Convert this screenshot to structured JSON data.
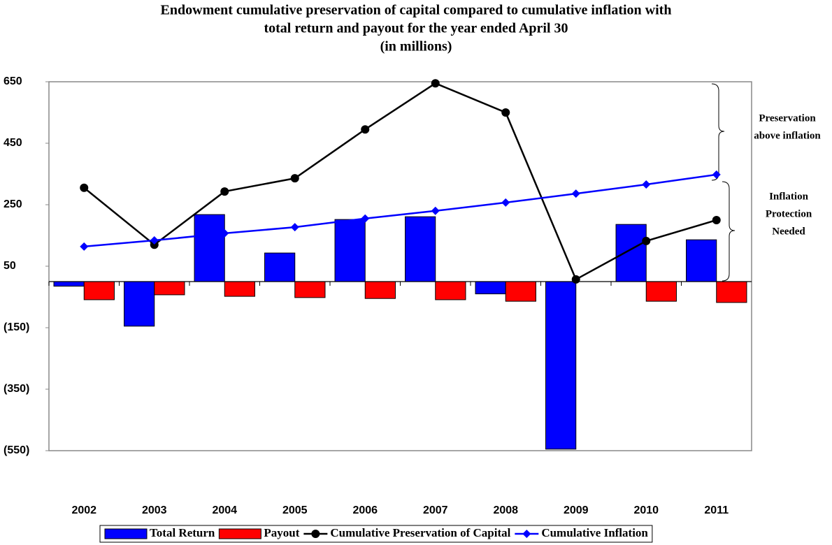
{
  "chart_data": {
    "type": "combo",
    "title": [
      "Endowment cumulative preservation of capital compared to cumulative inflation with",
      "total return and payout for the year ended April 30",
      "(in millions)"
    ],
    "categories": [
      "2002",
      "2003",
      "2004",
      "2005",
      "2006",
      "2007",
      "2008",
      "2009",
      "2010",
      "2011"
    ],
    "series": [
      {
        "name": "Total Return",
        "type": "bar",
        "color": "#0000ff",
        "values": [
          -15,
          -145,
          218,
          93,
          202,
          211,
          -40,
          -545,
          186,
          136
        ]
      },
      {
        "name": "Payout",
        "type": "bar",
        "color": "#ff0000",
        "values": [
          -59,
          -43,
          -48,
          -52,
          -55,
          -59,
          -64,
          null,
          -64,
          -68
        ]
      },
      {
        "name": "Cumulative Preservation of Capital",
        "type": "line",
        "marker": "circle",
        "color": "#000000",
        "values": [
          305,
          120,
          293,
          336,
          495,
          645,
          550,
          7,
          132,
          200
        ]
      },
      {
        "name": "Cumulative Inflation",
        "type": "line",
        "marker": "diamond",
        "color": "#0000ff",
        "values": [
          114,
          134,
          157,
          177,
          205,
          230,
          257,
          286,
          316,
          348
        ]
      }
    ],
    "ylim": [
      -550,
      650
    ],
    "yticks": [
      {
        "value": -550,
        "label": "(550)"
      },
      {
        "value": -350,
        "label": "(350)"
      },
      {
        "value": -150,
        "label": "(150)"
      },
      50,
      250,
      450,
      650
    ],
    "annotations": [
      {
        "lines": [
          "Preservation",
          "above inflation"
        ]
      },
      {
        "lines": [
          "Inflation",
          "Protection",
          "Needed"
        ]
      }
    ],
    "legend": "bottom"
  }
}
